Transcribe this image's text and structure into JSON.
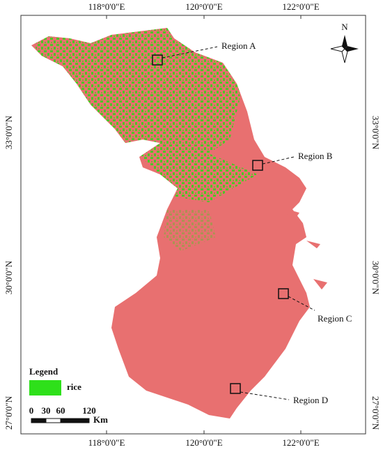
{
  "map": {
    "lon_labels": [
      "118°0'0\"E",
      "120°0'0\"E",
      "122°0'0\"E"
    ],
    "lat_labels": [
      "33°0'0\"N",
      "30°0'0\"N",
      "27°0'0\"N"
    ],
    "regions": [
      "Region A",
      "Region B",
      "Region C",
      "Region D"
    ],
    "north": "N",
    "legend": {
      "title": "Legend",
      "item": "rice"
    },
    "scale": {
      "ticks": [
        "0",
        "30",
        "60",
        "120"
      ],
      "unit": "Km"
    }
  }
}
